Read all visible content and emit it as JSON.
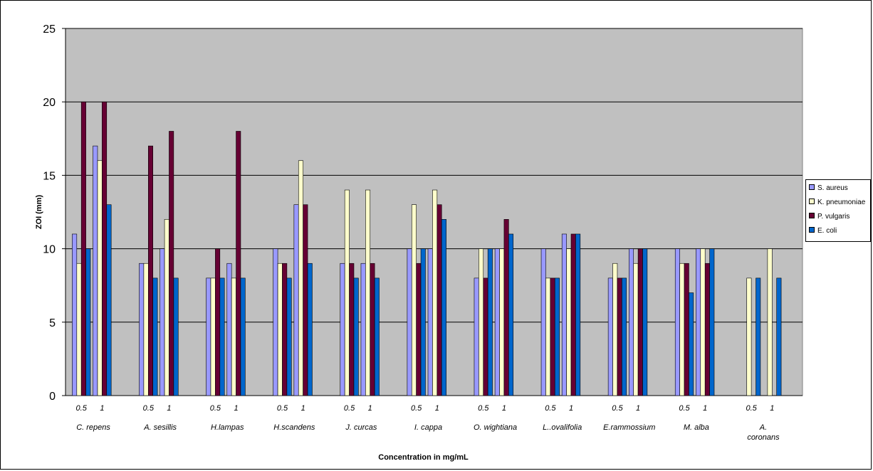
{
  "chart_data": {
    "type": "bar",
    "xlabel": "Concentration in mg/mL",
    "ylabel": "ZOI (mm)",
    "ylim": [
      0,
      25
    ],
    "yticks": [
      "0",
      "5",
      "10",
      "15",
      "20",
      "25"
    ],
    "grid": true,
    "legend_position": "right",
    "concentrations": [
      "0.5",
      "1"
    ],
    "groups": [
      "C. repens",
      "A. sesillis",
      "H.lampas",
      "H.scandens",
      "J. curcas",
      "I. cappa",
      "O. wightiana",
      "L..ovalifolia",
      "E.rammossium",
      "M. alba",
      "A. coronans"
    ],
    "series": [
      {
        "name": "S. aureus",
        "color": "#9999ff",
        "values": [
          11,
          17,
          9,
          10,
          8,
          9,
          10,
          13,
          9,
          9,
          10,
          10,
          8,
          10,
          10,
          11,
          8,
          10,
          10,
          10,
          0,
          0
        ]
      },
      {
        "name": "K. pneumoniae",
        "color": "#ffffcc",
        "values": [
          9,
          16,
          9,
          12,
          8,
          8,
          9,
          16,
          14,
          14,
          13,
          14,
          10,
          10,
          8,
          10,
          9,
          9,
          9,
          10,
          8,
          10
        ]
      },
      {
        "name": "P. vulgaris",
        "color": "#660033",
        "values": [
          20,
          20,
          17,
          18,
          10,
          18,
          9,
          13,
          9,
          9,
          9,
          13,
          8,
          12,
          8,
          11,
          8,
          10,
          9,
          9,
          0,
          0
        ]
      },
      {
        "name": "E. coli",
        "color": "#0066cc",
        "values": [
          10,
          13,
          8,
          8,
          8,
          8,
          8,
          9,
          8,
          8,
          10,
          12,
          10,
          11,
          8,
          11,
          8,
          10,
          7,
          10,
          8,
          8
        ]
      }
    ]
  }
}
